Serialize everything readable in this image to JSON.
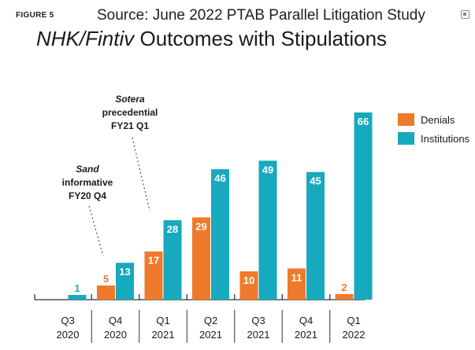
{
  "header": {
    "figure_label": "FIGURE 5",
    "source": "Source:  June 2022 PTAB Parallel Litigation Study",
    "source_icon": "expand-icon",
    "title_italic": "NHK/Fintiv",
    "title_rest": " Outcomes with Stipulations"
  },
  "annotations": {
    "sand": [
      "Sand",
      "informative",
      "FY20 Q4"
    ],
    "sotera": [
      "Sotera",
      "precedential",
      "FY21 Q1"
    ]
  },
  "chart_data": {
    "type": "bar",
    "categories": [
      [
        "Q3",
        "2020"
      ],
      [
        "Q4",
        "2020"
      ],
      [
        "Q1",
        "2021"
      ],
      [
        "Q2",
        "2021"
      ],
      [
        "Q3",
        "2021"
      ],
      [
        "Q4",
        "2021"
      ],
      [
        "Q1",
        "2022"
      ]
    ],
    "series": [
      {
        "name": "Denials",
        "color": "#f07a2b",
        "values": [
          0,
          5,
          17,
          29,
          10,
          11,
          2
        ]
      },
      {
        "name": "Institutions",
        "color": "#17a9be",
        "values": [
          1,
          13,
          28,
          46,
          49,
          45,
          66
        ]
      }
    ],
    "title": "NHK/Fintiv Outcomes with Stipulations",
    "xlabel": "",
    "ylabel": "",
    "ylim": [
      0,
      70
    ],
    "grid": false,
    "legend": "right"
  }
}
